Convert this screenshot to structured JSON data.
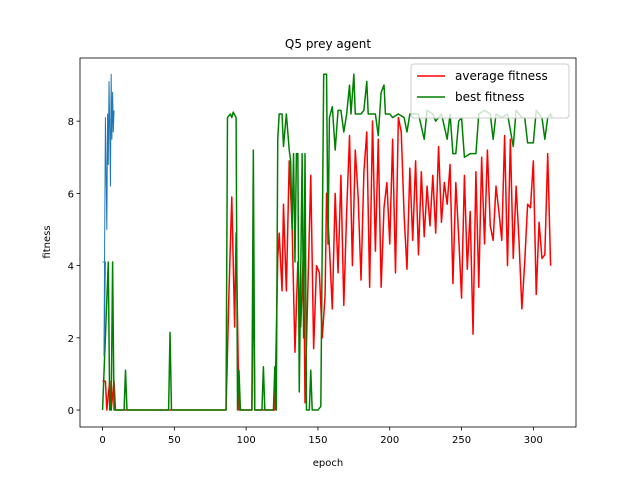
{
  "chart_data": {
    "type": "line",
    "title": "Q5 prey agent",
    "xlabel": "epoch",
    "ylabel": "fitness",
    "xlim": [
      -15.7,
      329.7
    ],
    "ylim": [
      -0.47,
      9.75
    ],
    "xticks": [
      0,
      50,
      100,
      150,
      200,
      250,
      300
    ],
    "yticks": [
      0,
      2,
      4,
      6,
      8
    ],
    "legend": "upper right",
    "series": [
      {
        "name": "average fitness",
        "color": "#ff0000",
        "x": [
          0,
          2,
          3,
          5,
          6,
          8,
          9,
          86,
          88,
          90,
          92,
          93,
          95,
          104,
          105,
          106,
          120,
          122,
          123,
          125,
          126,
          128,
          130,
          132,
          134,
          136,
          138,
          140,
          141,
          143,
          145,
          147,
          149,
          151,
          153,
          155,
          156,
          158,
          160,
          162,
          164,
          166,
          168,
          170,
          172,
          174,
          176,
          178,
          180,
          182,
          184,
          186,
          188,
          190,
          192,
          194,
          196,
          198,
          200,
          202,
          204,
          206,
          208,
          210,
          212,
          214,
          216,
          218,
          220,
          222,
          224,
          226,
          228,
          230,
          232,
          234,
          236,
          238,
          240,
          242,
          244,
          246,
          248,
          250,
          252,
          254,
          256,
          258,
          260,
          262,
          264,
          266,
          268,
          270,
          272,
          274,
          276,
          278,
          280,
          282,
          284,
          286,
          288,
          290,
          292,
          294,
          296,
          298,
          300,
          302,
          304,
          306,
          308,
          310,
          312
        ],
        "values": [
          0.8,
          0.8,
          0,
          0.8,
          0,
          0.8,
          0,
          0,
          3.2,
          5.9,
          2.3,
          4.9,
          0,
          0,
          4.3,
          0,
          0,
          4.2,
          4.9,
          3.3,
          5.7,
          3.3,
          6.9,
          5.1,
          1.6,
          4.1,
          2.3,
          4.5,
          0.2,
          3.4,
          6.5,
          1.7,
          4.0,
          3.8,
          2.0,
          3.2,
          6.0,
          4.5,
          2.8,
          6.0,
          3.8,
          6.5,
          2.9,
          5.5,
          7.6,
          4.0,
          7.2,
          5.9,
          3.6,
          6.6,
          7.7,
          3.4,
          8.0,
          4.4,
          7.5,
          3.4,
          5.6,
          6.3,
          4.6,
          7.5,
          3.8,
          8.1,
          7.7,
          5.4,
          3.9,
          6.7,
          4.7,
          6.9,
          4.3,
          6.6,
          4.8,
          6.2,
          5.1,
          6.5,
          4.9,
          7.3,
          5.2,
          6.3,
          5.7,
          6.8,
          3.5,
          6.3,
          4.8,
          3.1,
          6.5,
          3.9,
          5.5,
          2.1,
          6.6,
          3.4,
          7.0,
          4.6,
          7.2,
          5.1,
          4.7,
          6.2,
          5.5,
          4.7,
          7.6,
          4.0,
          7.5,
          4.2,
          6.2,
          4.7,
          2.8,
          4.1,
          5.7,
          5.6,
          6.9,
          3.2,
          5.2,
          4.2,
          4.3,
          7.1,
          4.0
        ]
      },
      {
        "name": "best fitness",
        "color": "#008000",
        "x": [
          0,
          4,
          5,
          6,
          7,
          8,
          15,
          16,
          17,
          46,
          47,
          48,
          86,
          87,
          89,
          90,
          91,
          93,
          94,
          95,
          96,
          104,
          105,
          106,
          111,
          112,
          113,
          119,
          120,
          121,
          122,
          123,
          125,
          126,
          128,
          130,
          131,
          132,
          133,
          134,
          135,
          136,
          137,
          139,
          140,
          141,
          142,
          144,
          145,
          146,
          150,
          152,
          154,
          156,
          157,
          158,
          160,
          162,
          164,
          166,
          168,
          170,
          172,
          173,
          175,
          176,
          180,
          182,
          184,
          185,
          188,
          190,
          192,
          194,
          196,
          197,
          200,
          202,
          206,
          210,
          212,
          214,
          220,
          224,
          226,
          230,
          232,
          236,
          240,
          242,
          244,
          246,
          248,
          250,
          252,
          256,
          260,
          262,
          266,
          270,
          272,
          274,
          278,
          282,
          286,
          288,
          292,
          294,
          296,
          300,
          302,
          306,
          308,
          310,
          312,
          313
        ],
        "values": [
          0,
          4.1,
          0,
          0,
          4.1,
          0,
          0,
          1.1,
          0,
          0,
          2.15,
          0,
          0,
          8.1,
          8.2,
          8.1,
          8.25,
          8.1,
          0,
          1.1,
          0,
          0,
          7.2,
          0,
          0,
          1.2,
          0,
          0,
          1.2,
          0,
          7.5,
          8.2,
          8.2,
          7.3,
          8.2,
          7.2,
          6.9,
          5.0,
          7.1,
          4.1,
          7.1,
          7.1,
          0.5,
          7.1,
          2.0,
          7.1,
          0,
          0,
          1.1,
          0,
          0,
          0.1,
          9.3,
          9.3,
          4.6,
          8.1,
          8.4,
          7.2,
          8.3,
          8.3,
          7.7,
          8.2,
          9.0,
          8.2,
          9.3,
          8.2,
          8.2,
          8.3,
          9.1,
          8.2,
          8.2,
          8.2,
          7.6,
          8.8,
          9.0,
          8.2,
          8.2,
          8.1,
          8.2,
          8.1,
          7.7,
          8.2,
          8.2,
          7.5,
          8.3,
          8.2,
          8.0,
          8.2,
          7.5,
          8.2,
          7.1,
          7.1,
          8.0,
          8.1,
          7.0,
          7.1,
          7.1,
          8.2,
          8.3,
          8.2,
          7.5,
          8.2,
          8.1,
          8.2,
          7.3,
          8.3,
          8.1,
          8.1,
          7.4,
          7.4,
          8.3,
          8.1,
          7.5,
          8.1,
          8.2,
          8.1
        ]
      },
      {
        "color": "#1f77b4",
        "x": [
          0,
          2,
          1,
          2,
          3,
          3.5,
          4,
          4.5,
          5,
          5.5,
          6,
          6.5,
          7,
          7.5,
          8
        ],
        "values": [
          4.1,
          4.1,
          1.5,
          8.1,
          5.0,
          8.2,
          6.8,
          9.1,
          7.8,
          6.2,
          9.3,
          7.5,
          8.8,
          7.7,
          8.3
        ]
      }
    ]
  }
}
